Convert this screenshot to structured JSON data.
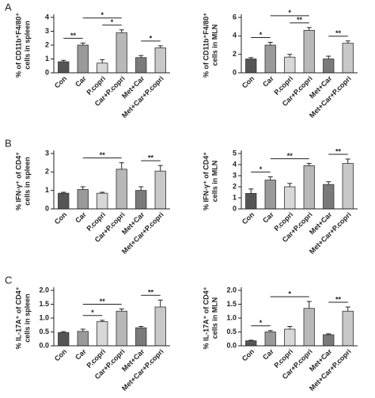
{
  "chart_data": [
    {
      "type": "bar",
      "panel": "A",
      "ylabel": [
        "% of CD11b⁺F4/80⁺",
        "cells in spleen"
      ],
      "categories": [
        "Con",
        "Car",
        "P.copri",
        "Car+P.copri",
        "Met+Car",
        "Met+Car+P.copri"
      ],
      "values": [
        0.8,
        2.0,
        0.7,
        2.9,
        1.1,
        1.8
      ],
      "errors": [
        0.1,
        0.15,
        0.25,
        0.2,
        0.15,
        0.15
      ],
      "colors": [
        "#555555",
        "#9a9a9a",
        "#d8d8d8",
        "#b8b8b8",
        "#7a7a7a",
        "#c8c8c8"
      ],
      "ylim": [
        0,
        4
      ],
      "yticks": [
        0,
        1,
        2,
        3,
        4
      ],
      "annotations": [
        {
          "label": "**",
          "between": [
            "Con",
            "Car"
          ]
        },
        {
          "label": "*",
          "between": [
            "P.copri",
            "Car+P.copri"
          ]
        },
        {
          "label": "*",
          "between": [
            "Car",
            "Car+P.copri"
          ]
        },
        {
          "label": "*",
          "between": [
            "Met+Car",
            "Met+Car+P.copri"
          ]
        }
      ]
    },
    {
      "type": "bar",
      "ylabel": [
        "% of CD11b⁺F4/80⁺",
        "cells in MLN"
      ],
      "categories": [
        "Con",
        "Car",
        "P.copri",
        "Car+P.copri",
        "Met+Car",
        "Met+Car+P.copri"
      ],
      "values": [
        1.5,
        3.0,
        1.7,
        4.6,
        1.5,
        3.2
      ],
      "errors": [
        0.15,
        0.3,
        0.3,
        0.3,
        0.3,
        0.25
      ],
      "colors": [
        "#555555",
        "#9a9a9a",
        "#d8d8d8",
        "#b8b8b8",
        "#7a7a7a",
        "#c8c8c8"
      ],
      "ylim": [
        0,
        6
      ],
      "yticks": [
        0,
        2,
        4,
        6
      ],
      "annotations": [
        {
          "label": "*",
          "between": [
            "Con",
            "Car"
          ]
        },
        {
          "label": "**",
          "between": [
            "P.copri",
            "Car+P.copri"
          ]
        },
        {
          "label": "*",
          "between": [
            "Car",
            "Car+P.copri"
          ]
        },
        {
          "label": "**",
          "between": [
            "Met+Car",
            "Met+Car+P.copri"
          ]
        }
      ]
    },
    {
      "type": "bar",
      "panel": "B",
      "ylabel": [
        "% IFN-γ⁺ of CD4⁺",
        "cells in spleen"
      ],
      "categories": [
        "Con",
        "Car",
        "P.copri",
        "Car+P.copri",
        "Met+Car",
        "Met+Car+P.copri"
      ],
      "values": [
        0.85,
        1.05,
        0.85,
        2.15,
        1.0,
        2.05
      ],
      "errors": [
        0.05,
        0.15,
        0.05,
        0.35,
        0.2,
        0.3
      ],
      "colors": [
        "#555555",
        "#9a9a9a",
        "#d8d8d8",
        "#b8b8b8",
        "#7a7a7a",
        "#c8c8c8"
      ],
      "ylim": [
        0,
        3
      ],
      "yticks": [
        0,
        1,
        2,
        3
      ],
      "annotations": [
        {
          "label": "**",
          "between": [
            "Car",
            "Car+P.copri"
          ]
        },
        {
          "label": "**",
          "between": [
            "Met+Car",
            "Met+Car+P.copri"
          ]
        }
      ]
    },
    {
      "type": "bar",
      "ylabel": [
        "% IFN-γ⁺ of CD4⁺",
        "cells in MLN"
      ],
      "categories": [
        "Con",
        "Car",
        "P.copri",
        "Car+P.copri",
        "Met+Car",
        "Met+Car+P.copri"
      ],
      "values": [
        1.4,
        2.6,
        2.0,
        3.9,
        2.2,
        4.1
      ],
      "errors": [
        0.4,
        0.3,
        0.3,
        0.2,
        0.25,
        0.4
      ],
      "colors": [
        "#555555",
        "#9a9a9a",
        "#d8d8d8",
        "#b8b8b8",
        "#7a7a7a",
        "#c8c8c8"
      ],
      "ylim": [
        0,
        5
      ],
      "yticks": [
        0,
        1,
        2,
        3,
        4,
        5
      ],
      "annotations": [
        {
          "label": "*",
          "between": [
            "Con",
            "Car"
          ]
        },
        {
          "label": "**",
          "between": [
            "Car",
            "Car+P.copri"
          ]
        },
        {
          "label": "**",
          "between": [
            "Met+Car",
            "Met+Car+P.copri"
          ]
        }
      ]
    },
    {
      "type": "bar",
      "panel": "C",
      "ylabel": [
        "% IL-17A⁺ of CD4⁺",
        "cells in spleen"
      ],
      "categories": [
        "Con",
        "Car",
        "P.copri",
        "Car+P.copri",
        "Met+Car",
        "Met+Car+P.copri"
      ],
      "values": [
        0.48,
        0.52,
        0.87,
        1.25,
        0.65,
        1.4
      ],
      "errors": [
        0.03,
        0.08,
        0.05,
        0.08,
        0.05,
        0.25
      ],
      "colors": [
        "#555555",
        "#9a9a9a",
        "#d8d8d8",
        "#b8b8b8",
        "#7a7a7a",
        "#c8c8c8"
      ],
      "ylim": [
        0,
        2
      ],
      "yticks": [
        {
          "value": 0,
          "label": "0.0"
        },
        {
          "value": 0.5,
          "label": "0.5"
        },
        {
          "value": 1,
          "label": "1.0"
        },
        {
          "value": 1.5,
          "label": "1.5"
        },
        {
          "value": 2,
          "label": "2.0"
        }
      ],
      "annotations": [
        {
          "label": "*",
          "between": [
            "Car",
            "P.copri"
          ]
        },
        {
          "label": "**",
          "between": [
            "Car",
            "Car+P.copri"
          ]
        },
        {
          "label": "**",
          "between": [
            "Met+Car",
            "Met+Car+P.copri"
          ]
        }
      ]
    },
    {
      "type": "bar",
      "ylabel": [
        "% IL-17A⁺ of CD4⁺",
        "cells in MLN"
      ],
      "categories": [
        "Con",
        "Car",
        "P.copri",
        "Car+P.copri",
        "Met+Car",
        "Met+Car+P.copri"
      ],
      "values": [
        0.18,
        0.5,
        0.6,
        1.35,
        0.4,
        1.25
      ],
      "errors": [
        0.02,
        0.05,
        0.1,
        0.25,
        0.03,
        0.15
      ],
      "colors": [
        "#555555",
        "#9a9a9a",
        "#d8d8d8",
        "#b8b8b8",
        "#7a7a7a",
        "#c8c8c8"
      ],
      "ylim": [
        0,
        2
      ],
      "yticks": [
        {
          "value": 0,
          "label": "0.0"
        },
        {
          "value": 0.5,
          "label": "0.5"
        },
        {
          "value": 1,
          "label": "1.0"
        },
        {
          "value": 1.5,
          "label": "1.5"
        },
        {
          "value": 2,
          "label": "2.0"
        }
      ],
      "annotations": [
        {
          "label": "*",
          "between": [
            "Con",
            "Car"
          ]
        },
        {
          "label": "*",
          "between": [
            "Car",
            "Car+P.copri"
          ]
        },
        {
          "label": "**",
          "between": [
            "Met+Car",
            "Met+Car+P.copri"
          ]
        }
      ]
    }
  ]
}
